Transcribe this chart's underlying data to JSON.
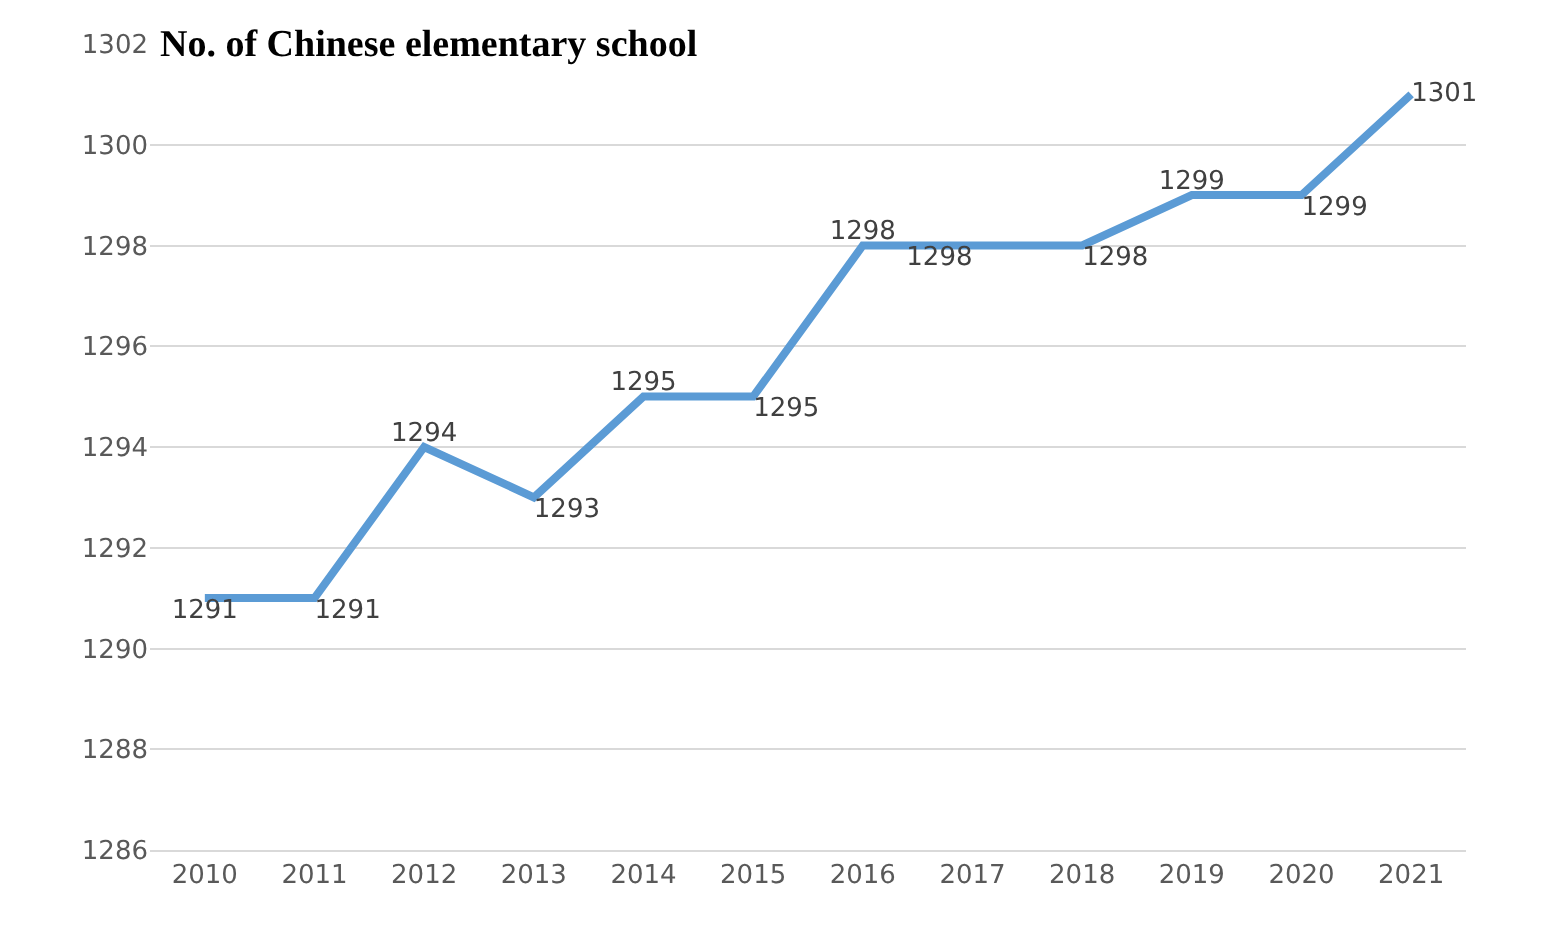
{
  "chart_data": {
    "type": "line",
    "title": "No. of Chinese elementary school",
    "categories": [
      "2010",
      "2011",
      "2012",
      "2013",
      "2014",
      "2015",
      "2016",
      "2017",
      "2018",
      "2019",
      "2020",
      "2021"
    ],
    "series": [
      {
        "color": "#5b9bd5",
        "values": [
          1291,
          1291,
          1294,
          1293,
          1295,
          1295,
          1298,
          1298,
          1298,
          1299,
          1299,
          1301
        ]
      }
    ],
    "ylim": [
      1286,
      1302
    ],
    "yticks": [
      1286,
      1288,
      1290,
      1292,
      1294,
      1296,
      1298,
      1300,
      1302
    ],
    "grid": "y",
    "data_labels": true,
    "marker": "none",
    "line_style": "solid",
    "legend": false
  }
}
